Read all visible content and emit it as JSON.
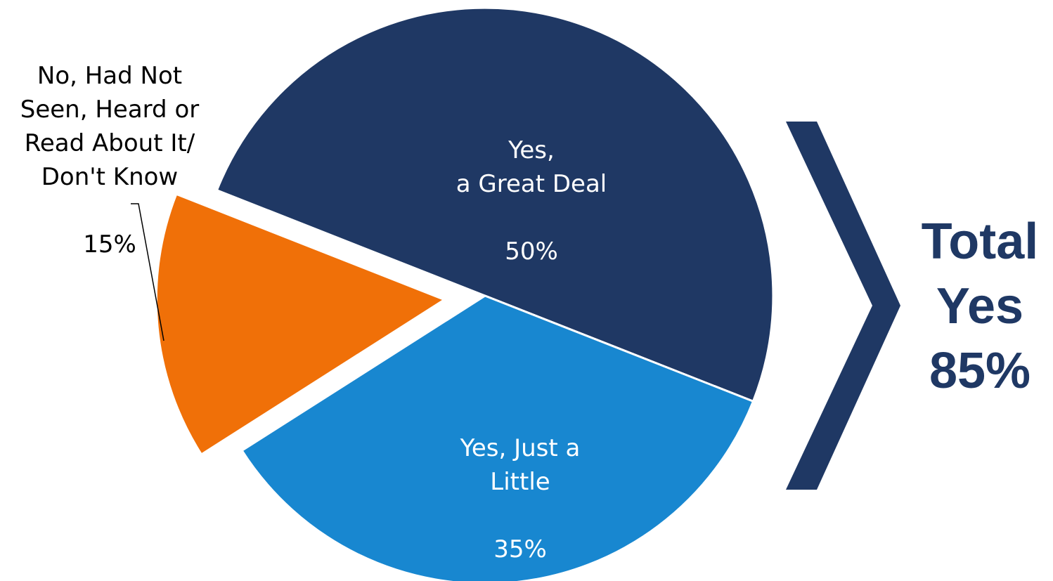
{
  "chart_data": {
    "type": "pie",
    "slices": [
      {
        "label": "Yes,\na Great Deal",
        "value": 50,
        "value_label": "50%",
        "color": "#1f3864"
      },
      {
        "label": "Yes, Just a\nLittle",
        "value": 35,
        "value_label": "35%",
        "color": "#1887d0"
      },
      {
        "label": "No, Had Not\nSeen, Heard or\nRead About It/\nDon't Know",
        "value": 15,
        "value_label": "15%",
        "color": "#f07008",
        "exploded": true
      }
    ],
    "annotation": {
      "text": "Total\nYes\n85%",
      "value": 85,
      "color": "#1f3864"
    },
    "legend": "none"
  }
}
